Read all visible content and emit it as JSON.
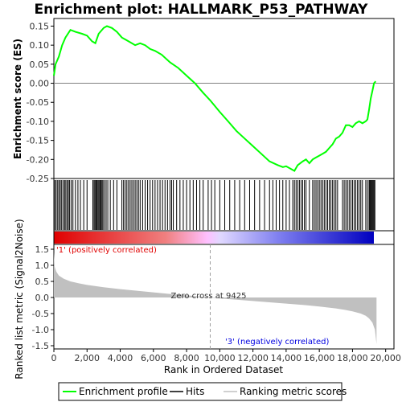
{
  "chart_data": {
    "type": "line",
    "title": "Enrichment plot: HALLMARK_P53_PATHWAY",
    "es_panel": {
      "ylabel": "Enrichment score (ES)",
      "ylim": [
        -0.25,
        0.17
      ],
      "yticks": [
        "0.15",
        "0.10",
        "0.05",
        "0.00",
        "-0.05",
        "-0.10",
        "-0.15",
        "-0.20",
        "-0.25"
      ],
      "ytick_values": [
        0.15,
        0.1,
        0.05,
        0.0,
        -0.05,
        -0.1,
        -0.15,
        -0.2,
        -0.25
      ],
      "series": [
        {
          "name": "Enrichment profile",
          "color": "#00ff00",
          "x": [
            0,
            100,
            300,
            500,
            700,
            1000,
            1300,
            1700,
            2000,
            2300,
            2500,
            2700,
            3000,
            3200,
            3500,
            3800,
            4100,
            4500,
            4900,
            5200,
            5500,
            5800,
            6100,
            6500,
            7000,
            7500,
            8000,
            8500,
            9000,
            9425,
            10000,
            10500,
            11000,
            11500,
            12000,
            12500,
            13000,
            13500,
            13800,
            14000,
            14300,
            14500,
            14700,
            15000,
            15200,
            15400,
            15600,
            15800,
            16000,
            16200,
            16400,
            16600,
            16800,
            17000,
            17200,
            17400,
            17500,
            17600,
            17800,
            18000,
            18200,
            18400,
            18600,
            18800,
            18900,
            19000,
            19100,
            19200,
            19300,
            19400
          ],
          "y": [
            0.02,
            0.05,
            0.07,
            0.1,
            0.12,
            0.14,
            0.135,
            0.13,
            0.125,
            0.11,
            0.105,
            0.13,
            0.145,
            0.15,
            0.145,
            0.135,
            0.12,
            0.11,
            0.1,
            0.105,
            0.1,
            0.09,
            0.085,
            0.075,
            0.055,
            0.04,
            0.02,
            0.0,
            -0.025,
            -0.045,
            -0.075,
            -0.1,
            -0.125,
            -0.145,
            -0.165,
            -0.185,
            -0.205,
            -0.215,
            -0.22,
            -0.218,
            -0.225,
            -0.23,
            -0.215,
            -0.205,
            -0.2,
            -0.21,
            -0.2,
            -0.195,
            -0.19,
            -0.185,
            -0.18,
            -0.17,
            -0.16,
            -0.145,
            -0.14,
            -0.13,
            -0.12,
            -0.11,
            -0.11,
            -0.115,
            -0.105,
            -0.1,
            -0.105,
            -0.1,
            -0.095,
            -0.07,
            -0.04,
            -0.02,
            0.0,
            0.005
          ]
        }
      ]
    },
    "hits": {
      "name": "Hits",
      "color": "#000000",
      "positions": [
        60,
        140,
        230,
        310,
        390,
        470,
        560,
        650,
        720,
        800,
        880,
        950,
        1050,
        1150,
        1300,
        1450,
        1600,
        1800,
        2000,
        2350,
        2420,
        2480,
        2540,
        2600,
        2660,
        2720,
        2780,
        2840,
        2900,
        2960,
        3050,
        3150,
        3250,
        3400,
        3600,
        3800,
        4100,
        4200,
        4300,
        4400,
        4500,
        4600,
        4700,
        4800,
        4900,
        5000,
        5100,
        5200,
        5350,
        5500,
        5650,
        5800,
        5950,
        6100,
        6250,
        6400,
        6550,
        6700,
        6850,
        7000,
        7100,
        7200,
        7400,
        7600,
        7800,
        8000,
        8200,
        8400,
        8600,
        8800,
        9000,
        9300,
        9500,
        9700,
        10000,
        10300,
        10600,
        10900,
        11200,
        11500,
        11800,
        12100,
        12400,
        12700,
        13000,
        13200,
        13400,
        13600,
        13800,
        14000,
        14200,
        14400,
        14500,
        14600,
        14700,
        14800,
        14900,
        15000,
        15100,
        15200,
        15400,
        15600,
        15700,
        15800,
        15900,
        16000,
        16100,
        16200,
        16300,
        16400,
        16500,
        16600,
        16700,
        16800,
        16900,
        17000,
        17100,
        17400,
        17500,
        17600,
        17700,
        17800,
        17900,
        18000,
        18100,
        18200,
        18300,
        18400,
        18500,
        18600,
        18800,
        18900,
        19000,
        19050,
        19100,
        19150,
        19200,
        19250,
        19300,
        19350
      ]
    },
    "rank_metric_panel": {
      "ylabel": "Ranked list metric (Signal2Noise)",
      "ylim": [
        -1.6,
        1.65
      ],
      "yticks": [
        "1.5",
        "1.0",
        "0.5",
        "0.0",
        "-0.5",
        "-1.0",
        "-1.5"
      ],
      "ytick_values": [
        1.5,
        1.0,
        0.5,
        0.0,
        -0.5,
        -1.0,
        -1.5
      ],
      "series": [
        {
          "name": "Ranking metric scores",
          "color": "#c0c0c0",
          "x": [
            0,
            50,
            150,
            300,
            600,
            1000,
            1500,
            2000,
            3000,
            4000,
            5000,
            6000,
            7000,
            8000,
            9000,
            9425,
            10000,
            11000,
            12000,
            13000,
            14000,
            15000,
            16000,
            17000,
            17500,
            18000,
            18500,
            18800,
            19000,
            19200,
            19350,
            19450
          ],
          "y": [
            1.4,
            0.95,
            0.8,
            0.68,
            0.58,
            0.5,
            0.44,
            0.39,
            0.32,
            0.26,
            0.21,
            0.16,
            0.11,
            0.07,
            0.02,
            0.0,
            -0.03,
            -0.07,
            -0.11,
            -0.15,
            -0.19,
            -0.23,
            -0.28,
            -0.34,
            -0.38,
            -0.43,
            -0.5,
            -0.57,
            -0.65,
            -0.78,
            -1.0,
            -1.45
          ]
        }
      ],
      "zero_cross_label": "Zero cross at 9425",
      "zero_cross_rank": 9425,
      "positive_label": "'1' (positively correlated)",
      "negative_label": "'3' (negatively correlated)",
      "positive_color": "#e00000",
      "negative_color": "#0000e0"
    },
    "xaxis": {
      "label": "Rank in Ordered Dataset",
      "xlim": [
        0,
        20500
      ],
      "ticks": [
        "0",
        "2,000",
        "4,000",
        "6,000",
        "8,000",
        "10,000",
        "12,000",
        "14,000",
        "16,000",
        "18,000",
        "20,000"
      ],
      "tick_values": [
        0,
        2000,
        4000,
        6000,
        8000,
        10000,
        12000,
        14000,
        16000,
        18000,
        20000
      ],
      "n_genes": 19450
    },
    "legend": {
      "placement": "bottom",
      "items": [
        {
          "label": "Enrichment profile",
          "color": "#00ff00"
        },
        {
          "label": "Hits",
          "color": "#000000"
        },
        {
          "label": "Ranking metric scores",
          "color": "#c0c0c0"
        }
      ]
    }
  }
}
